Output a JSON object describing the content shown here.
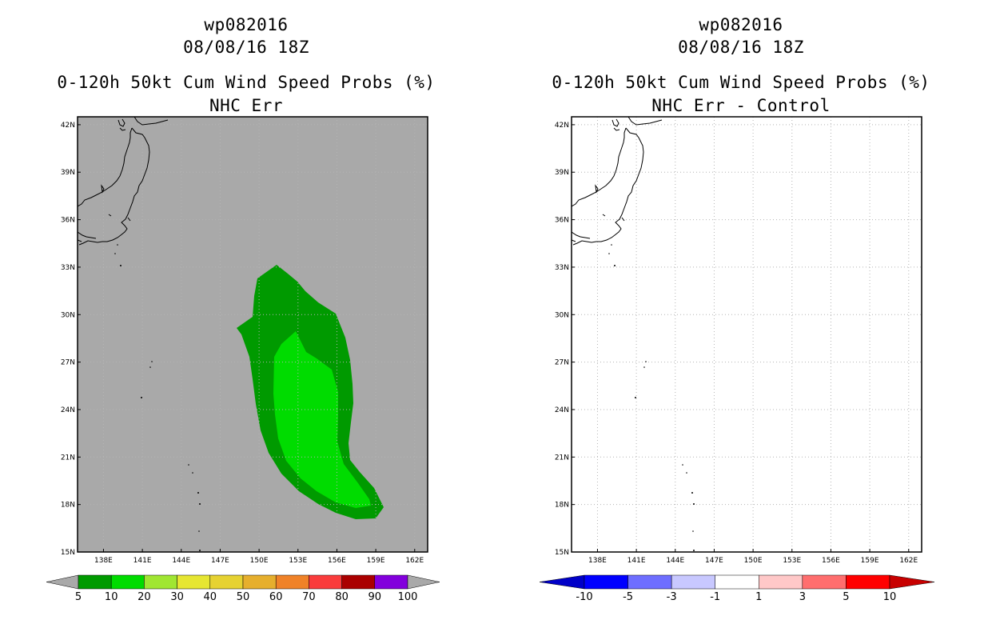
{
  "left": {
    "storm_id": "wp082016",
    "datetime": "08/08/16 18Z",
    "product": "0-120h 50kt Cum Wind Speed Probs (%)",
    "subtitle": "NHC Err",
    "background_color": "#a9a9a9",
    "colorbar": {
      "colors": [
        "#009a00",
        "#00dc00",
        "#a0e632",
        "#e6e632",
        "#e6d232",
        "#e6af2d",
        "#f08228",
        "#fa3c3c",
        "#aa0000",
        "#8200dc"
      ],
      "labels": [
        "5",
        "10",
        "20",
        "30",
        "40",
        "50",
        "60",
        "70",
        "80",
        "90",
        "100"
      ]
    }
  },
  "right": {
    "storm_id": "wp082016",
    "datetime": "08/08/16 18Z",
    "product": "0-120h 50kt Cum Wind Speed Probs (%)",
    "subtitle": "NHC Err - Control",
    "background_color": "#ffffff",
    "colorbar": {
      "colors": [
        "#0000c8",
        "#0000ff",
        "#6e6eff",
        "#c8c8ff",
        "#ffffff",
        "#ffc8c8",
        "#ff6e6e",
        "#ff0000",
        "#c80000"
      ],
      "labels": [
        "-10",
        "-5",
        "-3",
        "-1",
        "1",
        "3",
        "5",
        "10"
      ]
    }
  },
  "axes": {
    "lat_labels": [
      "42N",
      "39N",
      "36N",
      "33N",
      "30N",
      "27N",
      "24N",
      "21N",
      "18N",
      "15N"
    ],
    "lon_labels": [
      "138E",
      "141E",
      "144E",
      "147E",
      "150E",
      "153E",
      "156E",
      "159E",
      "162E"
    ]
  },
  "map": {
    "lon_range": [
      136,
      163
    ],
    "lat_range": [
      15,
      42.5
    ]
  },
  "colors": {
    "contour_outer": "#009a00",
    "contour_inner": "#00dc00",
    "grid": "#b4b4b4"
  }
}
